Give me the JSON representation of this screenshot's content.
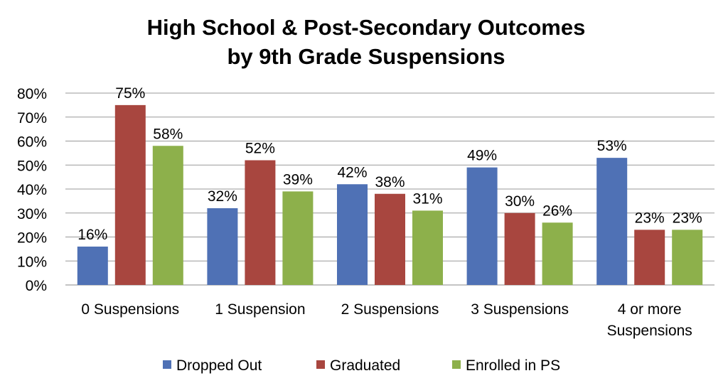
{
  "chart_data": {
    "type": "bar",
    "title": [
      "High School & Post-Secondary Outcomes",
      "by 9th Grade Suspensions"
    ],
    "xlabel": "",
    "ylabel": "",
    "categories": [
      [
        "0 Suspensions"
      ],
      [
        "1 Suspension"
      ],
      [
        "2 Suspensions"
      ],
      [
        "3 Suspensions"
      ],
      [
        "4 or more",
        "Suspensions"
      ]
    ],
    "series": [
      {
        "name": "Dropped Out",
        "color": "#4F71B5",
        "values": [
          16,
          32,
          42,
          49,
          53
        ]
      },
      {
        "name": "Graduated",
        "color": "#A8463F",
        "values": [
          75,
          52,
          38,
          30,
          23
        ]
      },
      {
        "name": "Enrolled in PS",
        "color": "#8DB04B",
        "values": [
          58,
          39,
          31,
          26,
          23
        ]
      }
    ],
    "value_format": "percent",
    "ylim": [
      0,
      80
    ],
    "yticks": [
      "0%",
      "10%",
      "20%",
      "30%",
      "40%",
      "50%",
      "60%",
      "70%",
      "80%"
    ],
    "grid": true,
    "legend_position": "bottom"
  }
}
